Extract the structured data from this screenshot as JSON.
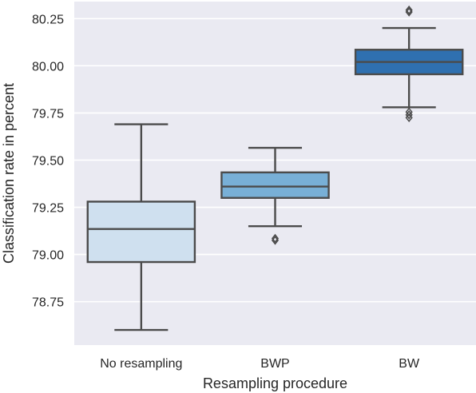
{
  "chart_data": {
    "type": "boxplot",
    "title": "",
    "xlabel": "Resampling procedure",
    "ylabel": "Classification rate in percent",
    "categories": [
      "No resampling",
      "BWP",
      "BW"
    ],
    "ylim": [
      78.52,
      80.34
    ],
    "yticks": [
      "78.75",
      "79.00",
      "79.25",
      "79.50",
      "79.75",
      "80.00",
      "80.25"
    ],
    "grid": true,
    "boxes": [
      {
        "category": "No resampling",
        "color": "#cfe0ef",
        "whisker_low": 78.6,
        "q1": 78.96,
        "median": 79.135,
        "q3": 79.28,
        "whisker_high": 79.69,
        "outliers": []
      },
      {
        "category": "BWP",
        "color": "#78afd6",
        "whisker_low": 79.15,
        "q1": 79.3,
        "median": 79.36,
        "q3": 79.435,
        "whisker_high": 79.565,
        "outliers": [
          79.085,
          79.075
        ]
      },
      {
        "category": "BW",
        "color": "#2f70b0",
        "whisker_low": 79.78,
        "q1": 79.955,
        "median": 80.02,
        "q3": 80.085,
        "whisker_high": 80.2,
        "outliers": [
          80.295,
          80.285,
          79.755,
          79.74,
          79.725
        ]
      }
    ],
    "colors": {
      "background": "#eaeaf2",
      "grid": "#ffffff",
      "line": "#4b4b4b",
      "outlier_edge": "#4b4b4b"
    }
  }
}
